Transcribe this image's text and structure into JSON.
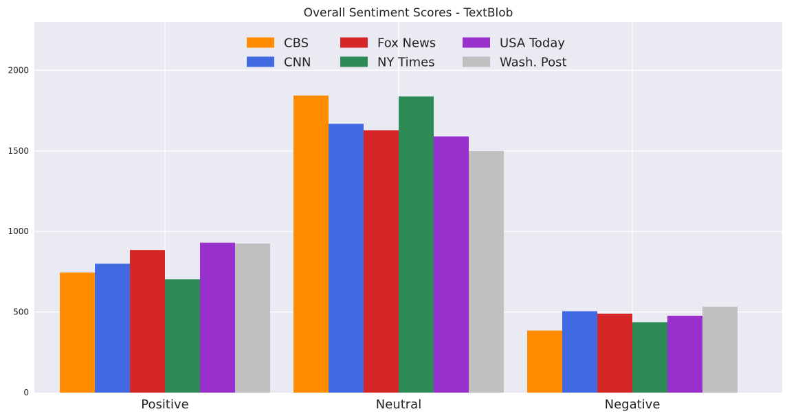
{
  "chart_data": {
    "type": "bar",
    "title": "Overall Sentiment Scores - TextBlob",
    "xlabel": "",
    "ylabel": "",
    "categories": [
      "Positive",
      "Neutral",
      "Negative"
    ],
    "ylim": [
      0,
      2300
    ],
    "yticks": [
      0,
      500,
      1000,
      1500,
      2000
    ],
    "grid": true,
    "legend_position": "top-center",
    "colors": {
      "background": "#eaeaf2",
      "grid": "#ffffff"
    },
    "series": [
      {
        "name": "CBS",
        "color": "#ff8c00",
        "values": [
          745,
          1843,
          385
        ]
      },
      {
        "name": "CNN",
        "color": "#4169e1",
        "values": [
          800,
          1668,
          505
        ]
      },
      {
        "name": "Fox News",
        "color": "#d62728",
        "values": [
          885,
          1628,
          490
        ]
      },
      {
        "name": "NY Times",
        "color": "#2e8b57",
        "values": [
          703,
          1838,
          437
        ]
      },
      {
        "name": "USA Today",
        "color": "#9932cc",
        "values": [
          930,
          1590,
          477
        ]
      },
      {
        "name": "Wash. Post",
        "color": "#c0c0c0",
        "values": [
          925,
          1500,
          533
        ]
      }
    ]
  }
}
